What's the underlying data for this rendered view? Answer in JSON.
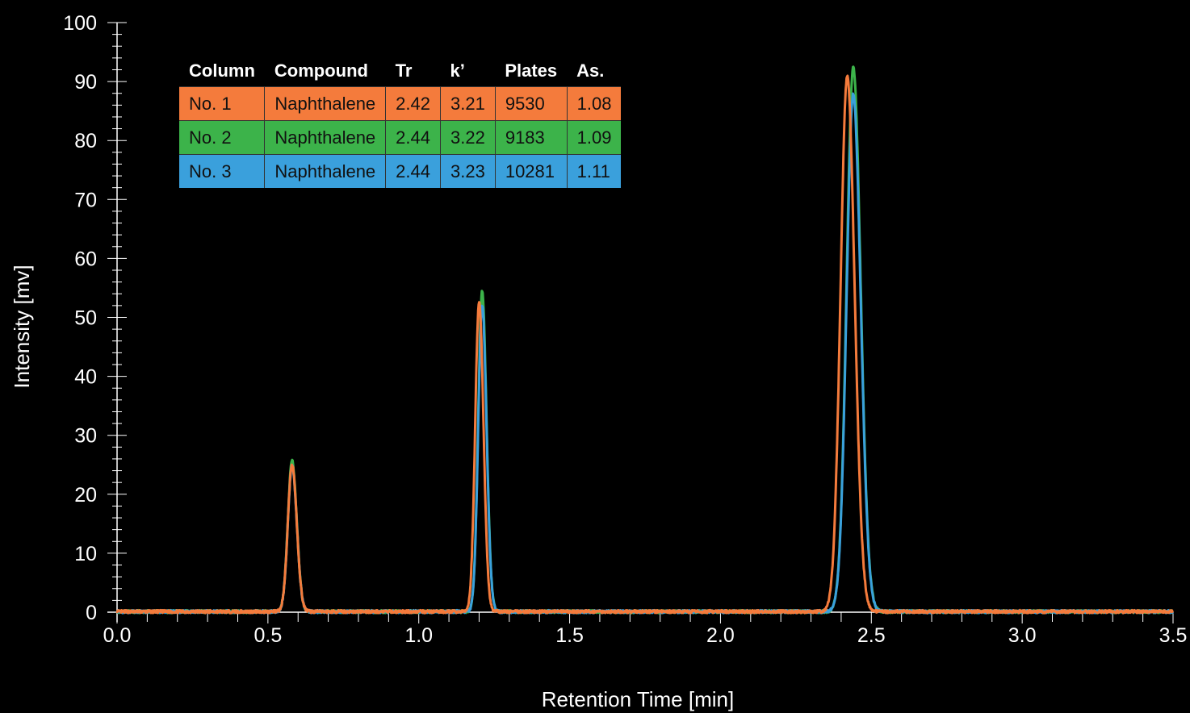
{
  "chart_data": {
    "type": "line",
    "xlabel": "Retention Time [min]",
    "ylabel": "Intensity [mv]",
    "xlim": [
      0,
      3.5
    ],
    "ylim": [
      0,
      100
    ],
    "x_ticks": [
      "0.0",
      "0.5",
      "1.0",
      "1.5",
      "2.0",
      "2.5",
      "3.0",
      "3.5"
    ],
    "y_ticks": [
      "0",
      "10",
      "20",
      "30",
      "40",
      "50",
      "60",
      "70",
      "80",
      "90",
      "100"
    ],
    "grid": false,
    "series": [
      {
        "name": "No. 1",
        "color": "#f47b3c",
        "peaks": [
          {
            "x": 0.58,
            "y": 25.0,
            "width": 0.014
          },
          {
            "x": 1.2,
            "y": 52.5,
            "width": 0.013
          },
          {
            "x": 2.42,
            "y": 90.8,
            "width": 0.022
          }
        ]
      },
      {
        "name": "No. 2",
        "color": "#3cb34a",
        "peaks": [
          {
            "x": 0.58,
            "y": 25.6,
            "width": 0.014
          },
          {
            "x": 1.21,
            "y": 54.4,
            "width": 0.013
          },
          {
            "x": 2.44,
            "y": 92.3,
            "width": 0.022
          }
        ]
      },
      {
        "name": "No. 3",
        "color": "#3aa0dc",
        "peaks": [
          {
            "x": 0.58,
            "y": 24.8,
            "width": 0.014
          },
          {
            "x": 1.21,
            "y": 52.0,
            "width": 0.013
          },
          {
            "x": 2.44,
            "y": 87.8,
            "width": 0.022
          }
        ]
      }
    ]
  },
  "table": {
    "headers": [
      "Column",
      "Compound",
      "Tr",
      "k’",
      "Plates",
      "As."
    ],
    "rows": [
      {
        "color": "#f47b3c",
        "cells": [
          "No. 1",
          "Naphthalene",
          "2.42",
          "3.21",
          "9530",
          "1.08"
        ]
      },
      {
        "color": "#3cb34a",
        "cells": [
          "No. 2",
          "Naphthalene",
          "2.44",
          "3.22",
          "9183",
          "1.09"
        ]
      },
      {
        "color": "#3aa0dc",
        "cells": [
          "No. 3",
          "Naphthalene",
          "2.44",
          "3.23",
          "10281",
          "1.11"
        ]
      }
    ]
  }
}
